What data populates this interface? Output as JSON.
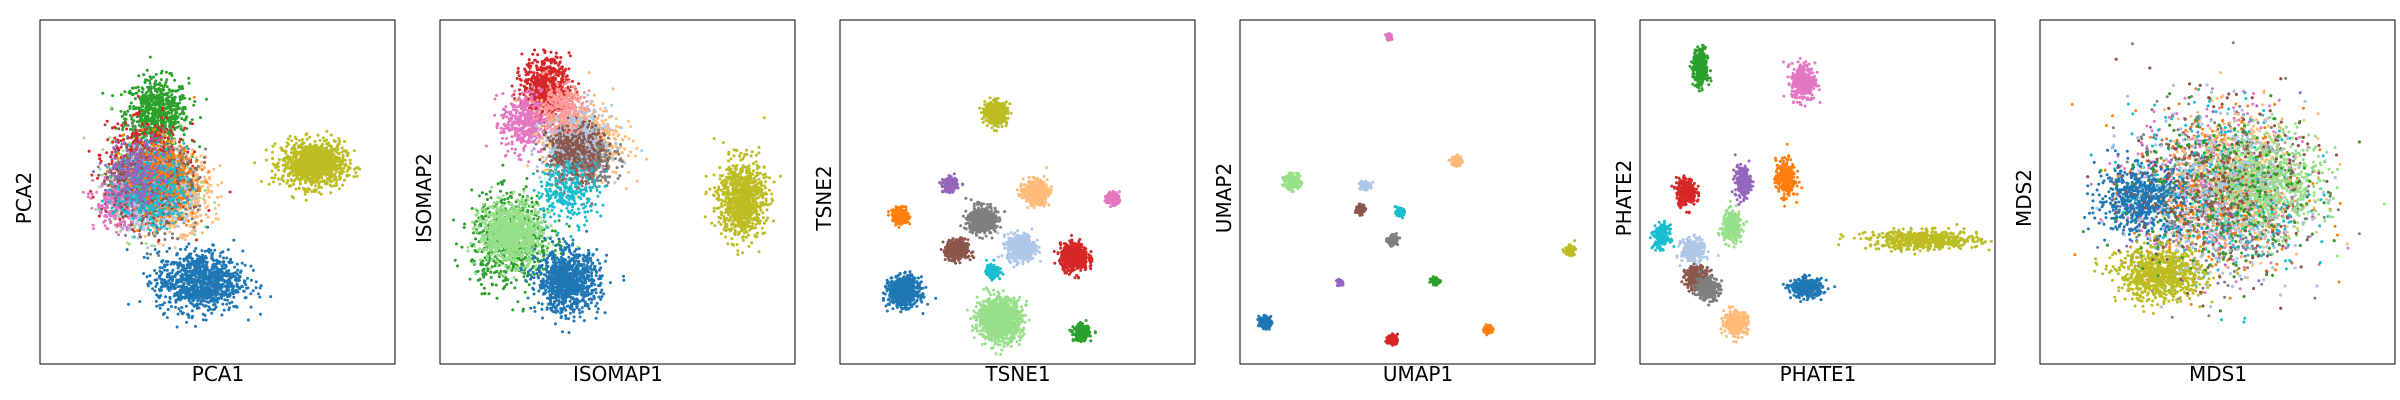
{
  "figure": {
    "palette": [
      "#1f77b4",
      "#aec7e8",
      "#ff7f0e",
      "#ffbb78",
      "#2ca02c",
      "#98df8a",
      "#d62728",
      "#ff9896",
      "#9467bd",
      "#c5b0d5",
      "#8c564b",
      "#c49c94",
      "#e377c2",
      "#f7b6d2",
      "#7f7f7f",
      "#c7c7c7",
      "#bcbd22",
      "#dbdb8d",
      "#17becf",
      "#9edae5"
    ]
  },
  "chart_data": [
    {
      "type": "scatter",
      "title": "",
      "xlabel": "PCA1",
      "ylabel": "PCA2",
      "xlim": [
        0,
        100
      ],
      "ylim": [
        0,
        100
      ],
      "grid": false,
      "legend": "none",
      "clusters": [
        {
          "color": "#2ca02c",
          "center": [
            33,
            73
          ],
          "spread": [
            8,
            9
          ],
          "n": 700
        },
        {
          "color": "#bcbd22",
          "center": [
            77,
            58
          ],
          "spread": [
            8,
            6
          ],
          "n": 1000
        },
        {
          "color": "#98df8a",
          "center": [
            31,
            53
          ],
          "spread": [
            10,
            11
          ],
          "n": 800
        },
        {
          "color": "#d62728",
          "center": [
            30,
            56
          ],
          "spread": [
            10,
            12
          ],
          "n": 800
        },
        {
          "color": "#ffbb78",
          "center": [
            37,
            50
          ],
          "spread": [
            10,
            10
          ],
          "n": 700
        },
        {
          "color": "#7f7f7f",
          "center": [
            33,
            52
          ],
          "spread": [
            10,
            11
          ],
          "n": 600
        },
        {
          "color": "#e377c2",
          "center": [
            22,
            47
          ],
          "spread": [
            6,
            7
          ],
          "n": 300
        },
        {
          "color": "#aec7e8",
          "center": [
            32,
            50
          ],
          "spread": [
            9,
            10
          ],
          "n": 500
        },
        {
          "color": "#8c564b",
          "center": [
            30,
            52
          ],
          "spread": [
            9,
            10
          ],
          "n": 400
        },
        {
          "color": "#ff7f0e",
          "center": [
            34,
            54
          ],
          "spread": [
            9,
            10
          ],
          "n": 300
        },
        {
          "color": "#17becf",
          "center": [
            31,
            51
          ],
          "spread": [
            9,
            10
          ],
          "n": 300
        },
        {
          "color": "#9467bd",
          "center": [
            28,
            55
          ],
          "spread": [
            8,
            9
          ],
          "n": 250
        },
        {
          "color": "#1f77b4",
          "center": [
            45,
            24
          ],
          "spread": [
            11,
            8
          ],
          "n": 1000
        }
      ]
    },
    {
      "type": "scatter",
      "title": "",
      "xlabel": "ISOMAP1",
      "ylabel": "ISOMAP2",
      "xlim": [
        0,
        100
      ],
      "ylim": [
        0,
        100
      ],
      "grid": false,
      "legend": "none",
      "clusters": [
        {
          "color": "#2ca02c",
          "center": [
            20,
            36
          ],
          "spread": [
            10,
            12
          ],
          "n": 700
        },
        {
          "color": "#98df8a",
          "center": [
            20,
            38
          ],
          "spread": [
            8,
            8
          ],
          "n": 900
        },
        {
          "color": "#1f77b4",
          "center": [
            36,
            24
          ],
          "spread": [
            8,
            8
          ],
          "n": 1000
        },
        {
          "color": "#bcbd22",
          "center": [
            85,
            48
          ],
          "spread": [
            6,
            10
          ],
          "n": 900
        },
        {
          "color": "#d62728",
          "center": [
            30,
            80
          ],
          "spread": [
            6,
            8
          ],
          "n": 700
        },
        {
          "color": "#e377c2",
          "center": [
            24,
            70
          ],
          "spread": [
            6,
            8
          ],
          "n": 400
        },
        {
          "color": "#ffbb78",
          "center": [
            40,
            65
          ],
          "spread": [
            10,
            10
          ],
          "n": 600
        },
        {
          "color": "#7f7f7f",
          "center": [
            40,
            60
          ],
          "spread": [
            8,
            8
          ],
          "n": 600
        },
        {
          "color": "#aec7e8",
          "center": [
            38,
            66
          ],
          "spread": [
            8,
            8
          ],
          "n": 400
        },
        {
          "color": "#8c564b",
          "center": [
            38,
            62
          ],
          "spread": [
            7,
            7
          ],
          "n": 300
        },
        {
          "color": "#17becf",
          "center": [
            36,
            50
          ],
          "spread": [
            8,
            8
          ],
          "n": 250
        },
        {
          "color": "#ff9896",
          "center": [
            34,
            75
          ],
          "spread": [
            6,
            6
          ],
          "n": 250
        }
      ]
    },
    {
      "type": "scatter",
      "title": "",
      "xlabel": "TSNE1",
      "ylabel": "TSNE2",
      "xlim": [
        0,
        100
      ],
      "ylim": [
        0,
        100
      ],
      "grid": false,
      "legend": "none",
      "clusters": [
        {
          "color": "#bcbd22",
          "center": [
            44,
            73
          ],
          "spread": [
            2.8,
            2.8
          ],
          "n": 500
        },
        {
          "color": "#9467bd",
          "center": [
            31,
            52
          ],
          "spread": [
            1.8,
            1.8
          ],
          "n": 250
        },
        {
          "color": "#ff7f0e",
          "center": [
            17,
            43
          ],
          "spread": [
            2,
            2
          ],
          "n": 300
        },
        {
          "color": "#7f7f7f",
          "center": [
            40,
            42
          ],
          "spread": [
            3.5,
            3.5
          ],
          "n": 500
        },
        {
          "color": "#ffbb78",
          "center": [
            55,
            50
          ],
          "spread": [
            3,
            3
          ],
          "n": 500
        },
        {
          "color": "#e377c2",
          "center": [
            77,
            48
          ],
          "spread": [
            1.6,
            1.6
          ],
          "n": 200
        },
        {
          "color": "#8c564b",
          "center": [
            33,
            33
          ],
          "spread": [
            2.8,
            2.8
          ],
          "n": 400
        },
        {
          "color": "#aec7e8",
          "center": [
            51,
            34
          ],
          "spread": [
            3.5,
            3.5
          ],
          "n": 500
        },
        {
          "color": "#17becf",
          "center": [
            43,
            27
          ],
          "spread": [
            1.6,
            1.6
          ],
          "n": 200
        },
        {
          "color": "#d62728",
          "center": [
            66,
            31
          ],
          "spread": [
            3.5,
            3.5
          ],
          "n": 600
        },
        {
          "color": "#1f77b4",
          "center": [
            18,
            21
          ],
          "spread": [
            3.8,
            3.8
          ],
          "n": 700
        },
        {
          "color": "#98df8a",
          "center": [
            45,
            13
          ],
          "spread": [
            5.5,
            5.5
          ],
          "n": 1100
        },
        {
          "color": "#2ca02c",
          "center": [
            68,
            9
          ],
          "spread": [
            2,
            2
          ],
          "n": 250
        }
      ]
    },
    {
      "type": "scatter",
      "title": "",
      "xlabel": "UMAP1",
      "ylabel": "UMAP2",
      "xlim": [
        0,
        100
      ],
      "ylim": [
        0,
        100
      ],
      "grid": false,
      "legend": "none",
      "clusters": [
        {
          "color": "#e377c2",
          "center": [
            42,
            95
          ],
          "spread": [
            0.8,
            0.8
          ],
          "n": 60
        },
        {
          "color": "#ffbb78",
          "center": [
            61,
            59
          ],
          "spread": [
            1.3,
            1.3
          ],
          "n": 150
        },
        {
          "color": "#98df8a",
          "center": [
            15,
            53
          ],
          "spread": [
            1.8,
            1.8
          ],
          "n": 250
        },
        {
          "color": "#aec7e8",
          "center": [
            35,
            52
          ],
          "spread": [
            1.3,
            1.3
          ],
          "n": 120
        },
        {
          "color": "#8c564b",
          "center": [
            34,
            45
          ],
          "spread": [
            1.2,
            1.2
          ],
          "n": 100
        },
        {
          "color": "#17becf",
          "center": [
            45,
            44
          ],
          "spread": [
            1,
            1
          ],
          "n": 80
        },
        {
          "color": "#7f7f7f",
          "center": [
            43,
            36
          ],
          "spread": [
            1.3,
            1.3
          ],
          "n": 120
        },
        {
          "color": "#bcbd22",
          "center": [
            93,
            33
          ],
          "spread": [
            1.2,
            1.2
          ],
          "n": 100
        },
        {
          "color": "#9467bd",
          "center": [
            28,
            24
          ],
          "spread": [
            0.8,
            0.8
          ],
          "n": 50
        },
        {
          "color": "#2ca02c",
          "center": [
            55,
            24
          ],
          "spread": [
            1,
            1
          ],
          "n": 80
        },
        {
          "color": "#1f77b4",
          "center": [
            7,
            12
          ],
          "spread": [
            1.5,
            1.5
          ],
          "n": 150
        },
        {
          "color": "#ff7f0e",
          "center": [
            70,
            10
          ],
          "spread": [
            1.1,
            1.1
          ],
          "n": 80
        },
        {
          "color": "#d62728",
          "center": [
            43,
            7
          ],
          "spread": [
            1.3,
            1.3
          ],
          "n": 120
        }
      ]
    },
    {
      "type": "scatter",
      "title": "",
      "xlabel": "PHATE1",
      "ylabel": "PHATE2",
      "xlim": [
        0,
        100
      ],
      "ylim": [
        0,
        100
      ],
      "grid": false,
      "legend": "none",
      "clusters": [
        {
          "color": "#2ca02c",
          "center": [
            17,
            86
          ],
          "spread": [
            1.8,
            5
          ],
          "n": 350
        },
        {
          "color": "#e377c2",
          "center": [
            46,
            82
          ],
          "spread": [
            3,
            5
          ],
          "n": 350
        },
        {
          "color": "#9467bd",
          "center": [
            29,
            53
          ],
          "spread": [
            2,
            4
          ],
          "n": 250
        },
        {
          "color": "#ff7f0e",
          "center": [
            41,
            54
          ],
          "spread": [
            2.5,
            5
          ],
          "n": 300
        },
        {
          "color": "#d62728",
          "center": [
            13,
            50
          ],
          "spread": [
            2.5,
            3.5
          ],
          "n": 300
        },
        {
          "color": "#98df8a",
          "center": [
            26,
            40
          ],
          "spread": [
            2.5,
            4
          ],
          "n": 300
        },
        {
          "color": "#17becf",
          "center": [
            6,
            37
          ],
          "spread": [
            2,
            3
          ],
          "n": 200
        },
        {
          "color": "#aec7e8",
          "center": [
            15,
            33
          ],
          "spread": [
            3,
            3
          ],
          "n": 300
        },
        {
          "color": "#8c564b",
          "center": [
            16,
            25
          ],
          "spread": [
            3,
            3
          ],
          "n": 300
        },
        {
          "color": "#7f7f7f",
          "center": [
            19,
            22
          ],
          "spread": [
            3,
            3
          ],
          "n": 300
        },
        {
          "color": "#ffbb78",
          "center": [
            27,
            12
          ],
          "spread": [
            3,
            3
          ],
          "n": 300
        },
        {
          "color": "#1f77b4",
          "center": [
            47,
            22
          ],
          "spread": [
            4,
            2.5
          ],
          "n": 350
        },
        {
          "color": "#bcbd22",
          "center": [
            80,
            36
          ],
          "spread": [
            14,
            2.5
          ],
          "n": 550
        }
      ]
    },
    {
      "type": "scatter",
      "title": "",
      "xlabel": "MDS1",
      "ylabel": "MDS2",
      "xlim": [
        0,
        100
      ],
      "ylim": [
        0,
        100
      ],
      "grid": false,
      "legend": "none",
      "clusters": [
        {
          "color": "#d62728",
          "center": [
            50,
            50
          ],
          "spread": [
            22,
            22
          ],
          "n": 600
        },
        {
          "color": "#9467bd",
          "center": [
            50,
            50
          ],
          "spread": [
            22,
            22
          ],
          "n": 400
        },
        {
          "color": "#e377c2",
          "center": [
            50,
            50
          ],
          "spread": [
            22,
            22
          ],
          "n": 400
        },
        {
          "color": "#ff7f0e",
          "center": [
            50,
            50
          ],
          "spread": [
            22,
            22
          ],
          "n": 400
        },
        {
          "color": "#7f7f7f",
          "center": [
            50,
            50
          ],
          "spread": [
            22,
            22
          ],
          "n": 400
        },
        {
          "color": "#17becf",
          "center": [
            50,
            50
          ],
          "spread": [
            22,
            22
          ],
          "n": 400
        },
        {
          "color": "#ffbb78",
          "center": [
            55,
            52
          ],
          "spread": [
            18,
            18
          ],
          "n": 500
        },
        {
          "color": "#98df8a",
          "center": [
            64,
            53
          ],
          "spread": [
            14,
            13
          ],
          "n": 700
        },
        {
          "color": "#1f77b4",
          "center": [
            28,
            48
          ],
          "spread": [
            11,
            9
          ],
          "n": 600
        },
        {
          "color": "#bcbd22",
          "center": [
            34,
            26
          ],
          "spread": [
            11,
            7
          ],
          "n": 800
        },
        {
          "color": "#2ca02c",
          "center": [
            50,
            50
          ],
          "spread": [
            22,
            22
          ],
          "n": 300
        },
        {
          "color": "#8c564b",
          "center": [
            50,
            50
          ],
          "spread": [
            22,
            22
          ],
          "n": 300
        },
        {
          "color": "#aec7e8",
          "center": [
            50,
            50
          ],
          "spread": [
            22,
            22
          ],
          "n": 300
        }
      ]
    }
  ]
}
